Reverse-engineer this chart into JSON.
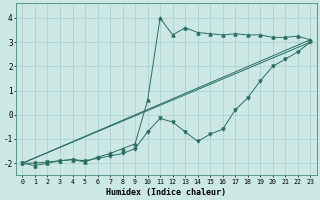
{
  "xlabel": "Humidex (Indice chaleur)",
  "ylabel": "",
  "xlim": [
    -0.5,
    23.5
  ],
  "ylim": [
    -2.5,
    4.6
  ],
  "xticks": [
    0,
    1,
    2,
    3,
    4,
    5,
    6,
    7,
    8,
    9,
    10,
    11,
    12,
    13,
    14,
    15,
    16,
    17,
    18,
    19,
    20,
    21,
    22,
    23
  ],
  "yticks": [
    -2,
    -1,
    0,
    1,
    2,
    3,
    4
  ],
  "bg_color": "#cce8e4",
  "line_color": "#2a6e62",
  "grid_color": "#a8cecc",
  "series_zigzag_x": [
    0,
    1,
    2,
    3,
    4,
    5,
    6,
    7,
    8,
    9,
    10,
    11,
    12,
    13,
    14,
    15,
    16,
    17,
    18,
    19,
    20,
    21,
    22,
    23
  ],
  "series_zigzag_y": [
    -2.0,
    -2.1,
    -2.0,
    -1.9,
    -1.85,
    -1.95,
    -1.75,
    -1.6,
    -1.4,
    -1.2,
    0.6,
    4.0,
    3.3,
    3.6,
    3.4,
    3.35,
    3.3,
    3.35,
    3.3,
    3.3,
    3.2,
    3.2,
    3.25,
    3.1
  ],
  "series_lower_x": [
    0,
    1,
    2,
    3,
    4,
    5,
    6,
    7,
    8,
    9,
    10,
    11,
    12,
    13,
    14,
    15,
    16,
    17,
    18,
    19,
    20,
    21,
    22,
    23
  ],
  "series_lower_y": [
    -2.0,
    -2.0,
    -1.95,
    -1.9,
    -1.85,
    -1.9,
    -1.8,
    -1.7,
    -1.6,
    -1.4,
    -0.7,
    -0.15,
    -0.3,
    -0.7,
    -1.1,
    -0.8,
    -0.6,
    0.2,
    0.7,
    1.4,
    2.0,
    2.3,
    2.6,
    3.0
  ],
  "line1_x": [
    0,
    23
  ],
  "line1_y": [
    -2.0,
    3.0
  ],
  "line2_x": [
    0,
    23
  ],
  "line2_y": [
    -2.0,
    3.1
  ],
  "marker_color": "#2a6e62"
}
